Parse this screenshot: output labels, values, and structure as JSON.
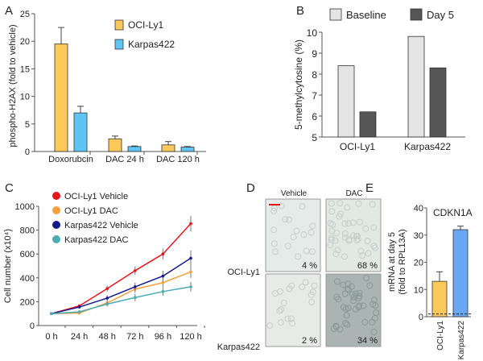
{
  "panel_labels": [
    "A",
    "B",
    "C",
    "D",
    "E"
  ],
  "colors": {
    "ocily1": "#fdc95a",
    "karpas": "#5ec4f2",
    "baseline": "#e4e4e4",
    "day5": "#555555",
    "oci_veh": "#e8141b",
    "oci_dac": "#f6a03c",
    "kar_veh": "#151a8c",
    "kar_dac": "#4aacb4",
    "karpasE": "#6aa8f3"
  },
  "chart_data": [
    {
      "id": "A",
      "type": "bar",
      "ylabel": "phospho-H2AX (fold to vehicle)",
      "ylim": [
        0,
        25
      ],
      "yticks": [
        0,
        5,
        10,
        15,
        20,
        25
      ],
      "categories": [
        "Doxorubcin",
        "DAC 24 h",
        "DAC 120 h"
      ],
      "series": [
        {
          "name": "OCI-Ly1",
          "values": [
            19.5,
            2.3,
            1.2
          ],
          "errors": [
            3.0,
            0.5,
            0.6
          ]
        },
        {
          "name": "Karpas422",
          "values": [
            7.0,
            0.9,
            0.8
          ],
          "errors": [
            1.2,
            0.1,
            0.1
          ]
        }
      ],
      "legend": "top-right"
    },
    {
      "id": "B",
      "type": "bar",
      "ylabel": "5-methylcytosine (%)",
      "ylim": [
        5,
        10
      ],
      "yticks": [
        5,
        6,
        7,
        8,
        9,
        10
      ],
      "categories": [
        "OCI-Ly1",
        "Karpas422"
      ],
      "series": [
        {
          "name": "Baseline",
          "values": [
            8.4,
            9.8
          ]
        },
        {
          "name": "Day 5",
          "values": [
            6.2,
            8.3
          ]
        }
      ],
      "legend": "top"
    },
    {
      "id": "C",
      "type": "line",
      "ylabel": "Cell number (x10⁴)",
      "ylim": [
        0,
        1000
      ],
      "yticks": [
        0,
        200,
        400,
        600,
        800,
        1000
      ],
      "x": [
        "0 h",
        "24 h",
        "48 h",
        "72 h",
        "96 h",
        "120 h"
      ],
      "series": [
        {
          "name": "OCI-Ly1 Vehicle",
          "values": [
            100,
            165,
            310,
            460,
            600,
            855
          ],
          "errors": [
            5,
            10,
            25,
            35,
            45,
            65
          ]
        },
        {
          "name": "OCI-Ly1 DAC",
          "values": [
            100,
            105,
            190,
            305,
            360,
            450
          ],
          "errors": [
            5,
            10,
            20,
            30,
            40,
            50
          ]
        },
        {
          "name": "Karpas422 Vehicle",
          "values": [
            100,
            155,
            230,
            325,
            415,
            565
          ],
          "errors": [
            5,
            10,
            25,
            35,
            45,
            65
          ]
        },
        {
          "name": "Karpas422 DAC",
          "values": [
            100,
            115,
            180,
            235,
            285,
            325
          ],
          "errors": [
            5,
            10,
            20,
            30,
            35,
            40
          ]
        }
      ],
      "legend": "top-left"
    },
    {
      "id": "E",
      "type": "bar",
      "title": "CDKN1A",
      "ylabel": "mRNA at day 5 (fold to RPL13A)",
      "ylim": [
        0,
        40
      ],
      "yticks": [
        0,
        10,
        20,
        30,
        40
      ],
      "categories": [
        "OCI-Ly1",
        "Karpas422"
      ],
      "values": [
        13,
        32
      ],
      "errors": [
        3.5,
        1.3
      ],
      "reference_line": 1
    }
  ],
  "panelD": {
    "cols": [
      "Vehicle",
      "DAC"
    ],
    "rows": [
      "OCI-Ly1",
      "Karpas422"
    ],
    "values": [
      "4 %",
      "68 %",
      "2 %",
      "34 %"
    ]
  }
}
